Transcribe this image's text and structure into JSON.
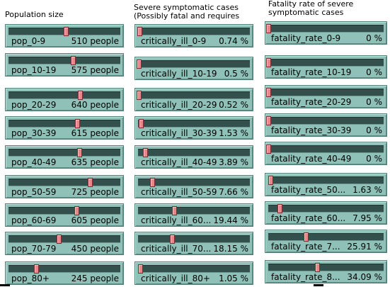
{
  "headers": {
    "population": "Population size",
    "severe": "Severe symptomatic cases\n(Possibly fatal and requires",
    "fatality": "Fatality rate of severe\nsymptomatic cases"
  },
  "population_sliders": [
    {
      "label": "pop_0-9",
      "value": "510 people",
      "level": 0.51
    },
    {
      "label": "pop_10-19",
      "value": "575 people",
      "level": 0.575
    },
    {
      "label": "pop_20-29",
      "value": "640 people",
      "level": 0.64
    },
    {
      "label": "pop_30-39",
      "value": "615 people",
      "level": 0.615
    },
    {
      "label": "pop_40-49",
      "value": "635 people",
      "level": 0.635
    },
    {
      "label": "pop_50-59",
      "value": "725 people",
      "level": 0.725
    },
    {
      "label": "pop_60-69",
      "value": "605 people",
      "level": 0.605
    },
    {
      "label": "pop_70-79",
      "value": "450 people",
      "level": 0.45
    },
    {
      "label": "pop_80+",
      "value": "245 people",
      "level": 0.245
    }
  ],
  "critically_ill_sliders": [
    {
      "label": "critically_ill_0-9",
      "value": "0.74 %",
      "level": 0.0074
    },
    {
      "label": "critically_ill_10-19",
      "value": "0.5 %",
      "level": 0.005
    },
    {
      "label": "critically_ill_20-29",
      "value": "0.52 %",
      "level": 0.0052
    },
    {
      "label": "critically_ill_30-39",
      "value": "1.53 %",
      "level": 0.0153
    },
    {
      "label": "critically_ill_40-49",
      "value": "3.89 %",
      "level": 0.0389
    },
    {
      "label": "critically_ill_50-59",
      "value": "7.66 %",
      "level": 0.0766
    },
    {
      "label": "critically_ill_60...",
      "value": "19.44 %",
      "level": 0.1944
    },
    {
      "label": "critically_ill_70...",
      "value": "18.15 %",
      "level": 0.1815
    },
    {
      "label": "critically_ill_80+",
      "value": "1.05 %",
      "level": 0.0105
    }
  ],
  "fatality_sliders": [
    {
      "label": "fatality_rate_0-9",
      "value": "0 %",
      "level": 0
    },
    {
      "label": "fatality_rate_10-19",
      "value": "0 %",
      "level": 0
    },
    {
      "label": "fatality_rate_20-29",
      "value": "0 %",
      "level": 0
    },
    {
      "label": "fatality_rate_30-39",
      "value": "0 %",
      "level": 0
    },
    {
      "label": "fatality_rate_40-49",
      "value": "0 %",
      "level": 0
    },
    {
      "label": "fatality_rate_50...",
      "value": "1.63 %",
      "level": 0.0163
    },
    {
      "label": "fatality_rate_60...",
      "value": "7.95 %",
      "level": 0.0795
    },
    {
      "label": "fatality_rate_7...",
      "value": "25.91 %",
      "level": 0.2591
    },
    {
      "label": "fatality_rate_8...",
      "value": "34.09 %",
      "level": 0.3409
    }
  ]
}
